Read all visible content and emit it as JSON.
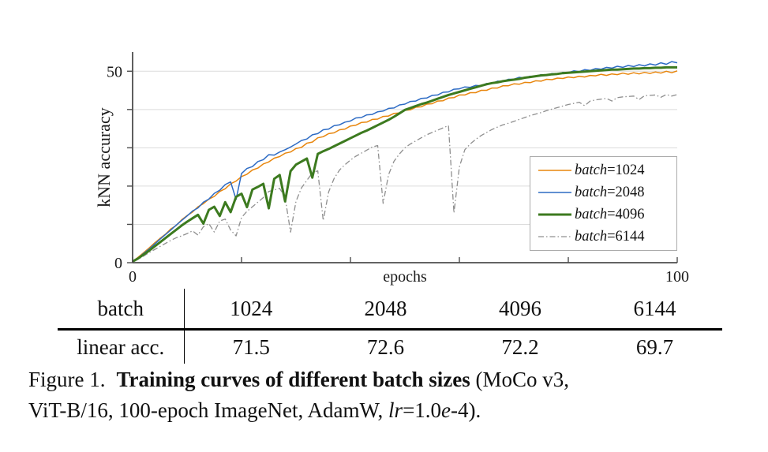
{
  "caption": {
    "label": "Figure 1.",
    "bold": "Training curves of different batch sizes",
    "tail": [
      {
        "t": " (MoCo v3,",
        "i": false,
        "br": true
      },
      {
        "t": "ViT-B/16, 100-epoch ImageNet, AdamW, ",
        "i": false
      },
      {
        "t": "lr",
        "i": true
      },
      {
        "t": "=1.0",
        "i": false
      },
      {
        "t": "e",
        "i": true
      },
      {
        "t": "-4).",
        "i": false
      }
    ]
  },
  "table": {
    "header": [
      "batch",
      "1024",
      "2048",
      "4096",
      "6144"
    ],
    "row": [
      "linear acc.",
      "71.5",
      "72.6",
      "72.2",
      "69.7"
    ]
  },
  "chart_data": {
    "type": "line",
    "xlabel": "epochs",
    "ylabel": "kNN accuracy",
    "xlim": [
      0,
      100
    ],
    "ylim": [
      0,
      55
    ],
    "x_step": 1,
    "x_ticks": [
      0,
      20,
      40,
      60,
      80,
      100
    ],
    "x_tick_labels_shown": [
      "0",
      "100"
    ],
    "y_ticks": [
      0,
      10,
      20,
      30,
      40,
      50
    ],
    "y_tick_labels_shown": [
      "0",
      "50"
    ],
    "grid": "horizontal",
    "grid_color": "#dcdcdc",
    "axis_color": "#4d4d4d",
    "legend_position": "lower-right-inside",
    "draw_order": [
      3,
      0,
      1,
      2
    ],
    "series": [
      {
        "name": "batch=1024",
        "color": "#E8860D",
        "width": 1.5,
        "dash": null,
        "values": [
          0.3,
          1.4,
          2.6,
          3.8,
          5.1,
          6.3,
          7.4,
          8.8,
          9.7,
          11.2,
          12.3,
          13.2,
          14.6,
          15.4,
          16.6,
          17.3,
          18.6,
          19.3,
          20.6,
          21.3,
          22.5,
          23.1,
          24.2,
          24.7,
          25.8,
          26.3,
          27.3,
          27.7,
          28.6,
          28.9,
          29.8,
          30.1,
          31.2,
          31.5,
          32.6,
          32.9,
          33.7,
          33.9,
          34.7,
          34.9,
          35.7,
          35.9,
          36.6,
          36.7,
          37.4,
          37.5,
          38.2,
          38.3,
          39.0,
          39.1,
          39.8,
          39.9,
          40.6,
          40.7,
          41.4,
          41.5,
          42.2,
          42.3,
          43.0,
          43.1,
          43.8,
          43.8,
          44.4,
          44.4,
          45.0,
          45.0,
          45.6,
          45.6,
          46.2,
          46.2,
          46.7,
          46.6,
          47.1,
          47.0,
          47.5,
          47.4,
          47.9,
          47.8,
          48.2,
          48.1,
          48.5,
          48.3,
          48.7,
          48.5,
          48.9,
          48.8,
          49.2,
          48.9,
          49.3,
          49.1,
          49.5,
          49.2,
          49.6,
          49.3,
          49.7,
          49.4,
          49.8,
          49.5,
          50.0,
          49.6,
          50.1
        ]
      },
      {
        "name": "batch=2048",
        "color": "#2D6BC4",
        "width": 1.5,
        "dash": null,
        "values": [
          0.3,
          1.2,
          2.4,
          3.5,
          4.8,
          6.1,
          7.3,
          8.5,
          9.8,
          11.0,
          12.2,
          13.5,
          14.3,
          15.8,
          16.6,
          18.1,
          18.9,
          20.4,
          21.1,
          16.5,
          23.3,
          24.6,
          25.1,
          26.4,
          26.9,
          28.2,
          28.1,
          28.9,
          29.5,
          30.2,
          31.0,
          31.9,
          32.3,
          33.4,
          33.7,
          34.7,
          34.9,
          35.8,
          36.0,
          36.7,
          37.0,
          37.8,
          37.9,
          38.6,
          38.7,
          39.4,
          39.6,
          40.3,
          40.4,
          41.2,
          41.4,
          42.1,
          42.2,
          42.9,
          43.0,
          43.7,
          43.8,
          44.5,
          44.6,
          45.3,
          45.4,
          45.9,
          45.8,
          46.3,
          46.2,
          46.8,
          46.8,
          47.4,
          47.3,
          47.9,
          47.9,
          48.4,
          48.2,
          48.7,
          48.6,
          49.1,
          48.9,
          49.4,
          49.2,
          49.7,
          49.6,
          50.1,
          49.9,
          50.4,
          50.2,
          50.7,
          50.5,
          51.0,
          50.8,
          51.3,
          51.0,
          51.5,
          51.2,
          51.7,
          51.4,
          51.9,
          51.6,
          52.2,
          51.8,
          52.5,
          52.2
        ]
      },
      {
        "name": "batch=4096",
        "color": "#3C7A1F",
        "width": 3,
        "dash": null,
        "values": [
          0.3,
          1.1,
          2.1,
          3.1,
          4.2,
          5.3,
          6.4,
          7.5,
          8.6,
          9.7,
          10.7,
          11.6,
          12.5,
          10.2,
          13.8,
          14.6,
          12.2,
          15.8,
          13.2,
          17.2,
          18.0,
          14.5,
          19.1,
          19.8,
          20.6,
          14.2,
          21.9,
          22.9,
          16.0,
          23.9,
          25.6,
          26.4,
          27.2,
          22.2,
          28.4,
          29.1,
          29.7,
          30.4,
          31.1,
          31.8,
          32.5,
          33.2,
          33.9,
          34.5,
          35.2,
          35.9,
          36.6,
          37.3,
          38.1,
          39.0,
          39.9,
          40.4,
          40.9,
          41.4,
          41.8,
          42.3,
          42.8,
          43.3,
          43.8,
          44.2,
          44.6,
          45.0,
          45.4,
          45.8,
          46.2,
          46.6,
          46.9,
          47.1,
          47.4,
          47.6,
          47.8,
          48.0,
          48.3,
          48.5,
          48.7,
          48.9,
          49.0,
          49.2,
          49.3,
          49.5,
          49.6,
          49.7,
          49.8,
          49.9,
          50.0,
          50.1,
          50.2,
          50.3,
          50.4,
          50.4,
          50.5,
          50.6,
          50.7,
          50.7,
          50.8,
          50.8,
          50.9,
          50.9,
          51.0,
          51.0,
          51.0
        ]
      },
      {
        "name": "batch=6144",
        "color": "#8f8f8f",
        "width": 1.3,
        "dash": "7 3 1.5 3",
        "values": [
          0.3,
          0.9,
          1.7,
          2.6,
          3.4,
          4.2,
          5.0,
          5.8,
          6.5,
          7.0,
          7.6,
          8.3,
          7.2,
          9.4,
          10.2,
          8.0,
          10.9,
          11.4,
          8.5,
          7.0,
          11.8,
          13.4,
          14.6,
          15.8,
          17.0,
          18.6,
          19.0,
          19.4,
          17.0,
          8.0,
          16.0,
          19.5,
          21.5,
          23.4,
          24.0,
          11.0,
          18.5,
          22.0,
          24.2,
          25.6,
          26.8,
          27.8,
          28.6,
          29.4,
          30.2,
          30.6,
          15.5,
          23.0,
          26.5,
          28.4,
          30.0,
          31.0,
          31.8,
          32.6,
          33.4,
          34.0,
          34.6,
          35.2,
          35.8,
          13.0,
          25.0,
          29.5,
          31.0,
          32.2,
          33.2,
          34.0,
          34.8,
          35.4,
          36.0,
          36.4,
          36.9,
          37.4,
          37.9,
          38.4,
          38.8,
          39.2,
          39.7,
          40.1,
          40.5,
          40.9,
          41.3,
          41.6,
          41.9,
          41.0,
          42.2,
          42.5,
          42.7,
          42.9,
          42.2,
          43.1,
          43.3,
          43.4,
          43.5,
          42.6,
          43.6,
          43.7,
          43.8,
          43.2,
          43.9,
          43.5,
          43.9
        ]
      }
    ]
  }
}
